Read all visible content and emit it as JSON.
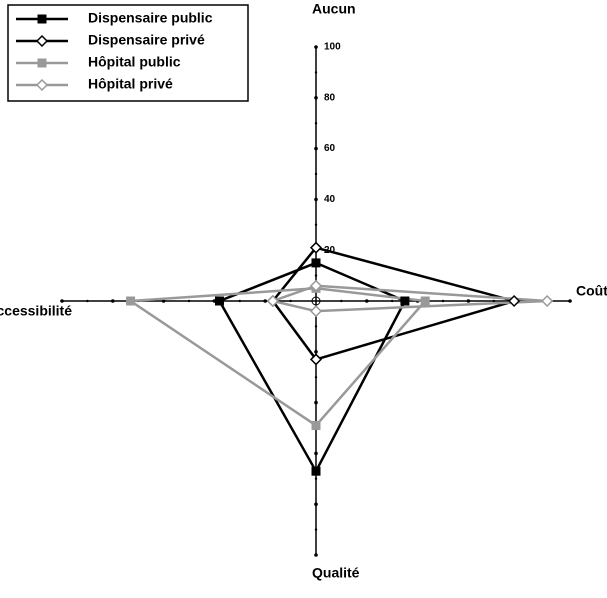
{
  "chart_data": {
    "type": "radar",
    "axes": [
      "Aucun",
      "Coût",
      "Qualité",
      "Accessibilité"
    ],
    "rlim": [
      0,
      100
    ],
    "rticks": [
      20,
      40,
      60,
      80,
      100
    ],
    "series": [
      {
        "name": "Dispensaire public",
        "color": "#000000",
        "marker": "square",
        "values": [
          15,
          35,
          67,
          38
        ]
      },
      {
        "name": "Dispensaire privé",
        "color": "#000000",
        "marker": "diamond",
        "values": [
          21,
          78,
          23,
          17
        ]
      },
      {
        "name": "Hôpital public",
        "color": "#999999",
        "marker": "square",
        "values": [
          5,
          43,
          49,
          73
        ]
      },
      {
        "name": "Hôpital privé",
        "color": "#999999",
        "marker": "diamond",
        "values": [
          6,
          91,
          4,
          17
        ]
      }
    ],
    "legend": "upper left"
  }
}
